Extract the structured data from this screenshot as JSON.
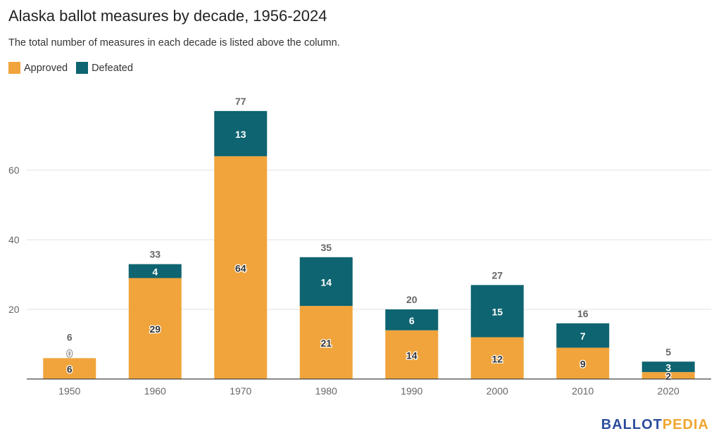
{
  "header": {
    "title": "Alaska ballot measures by decade, 1956-2024",
    "subtitle": "The total number of measures in each decade is listed above the column."
  },
  "legend": {
    "approved_label": "Approved",
    "defeated_label": "Defeated"
  },
  "colors": {
    "approved": "#f0a43b",
    "defeated": "#0e6470",
    "grid": "#e2e2e2",
    "axis": "#444444",
    "tick_text": "#666666",
    "total_text": "#666666"
  },
  "brand": {
    "part1": "BALLOT",
    "part2": "PEDIA"
  },
  "chart_data": {
    "type": "bar",
    "stacked": true,
    "title": "Alaska ballot measures by decade, 1956-2024",
    "subtitle": "The total number of measures in each decade is listed above the column.",
    "categories": [
      "1950",
      "1960",
      "1970",
      "1980",
      "1990",
      "2000",
      "2010",
      "2020"
    ],
    "series": [
      {
        "name": "Approved",
        "values": [
          6,
          29,
          64,
          21,
          14,
          12,
          9,
          2
        ]
      },
      {
        "name": "Defeated",
        "values": [
          0,
          4,
          13,
          14,
          6,
          15,
          7,
          3
        ]
      }
    ],
    "totals": [
      6,
      33,
      77,
      35,
      20,
      27,
      16,
      5
    ],
    "y_ticks": [
      20,
      40,
      60
    ],
    "ylim": [
      0,
      80
    ],
    "grid": true,
    "legend_position": "top-left"
  }
}
